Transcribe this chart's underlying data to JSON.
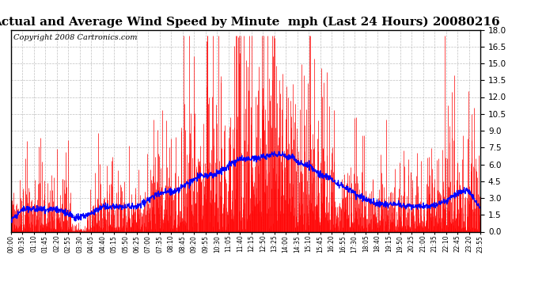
{
  "title": "Actual and Average Wind Speed by Minute  mph (Last 24 Hours) 20080216",
  "copyright": "Copyright 2008 Cartronics.com",
  "bar_color": "#ff0000",
  "line_color": "#0000ff",
  "background_color": "#ffffff",
  "grid_color": "#b0b0b0",
  "ylim": [
    0.0,
    18.0
  ],
  "yticks": [
    0.0,
    1.5,
    3.0,
    4.5,
    6.0,
    7.5,
    9.0,
    10.5,
    12.0,
    13.5,
    15.0,
    16.5,
    18.0
  ],
  "xtick_labels": [
    "00:00",
    "00:35",
    "01:10",
    "01:45",
    "02:20",
    "02:55",
    "03:30",
    "04:05",
    "04:40",
    "05:15",
    "05:50",
    "06:25",
    "07:00",
    "07:35",
    "08:10",
    "08:45",
    "09:20",
    "09:55",
    "10:30",
    "11:05",
    "11:40",
    "12:15",
    "12:50",
    "13:25",
    "14:00",
    "14:35",
    "15:10",
    "15:45",
    "16:20",
    "16:55",
    "17:30",
    "18:05",
    "18:40",
    "19:15",
    "19:50",
    "20:25",
    "21:00",
    "21:35",
    "22:10",
    "22:45",
    "23:20",
    "23:55"
  ],
  "title_fontsize": 11,
  "copyright_fontsize": 7
}
